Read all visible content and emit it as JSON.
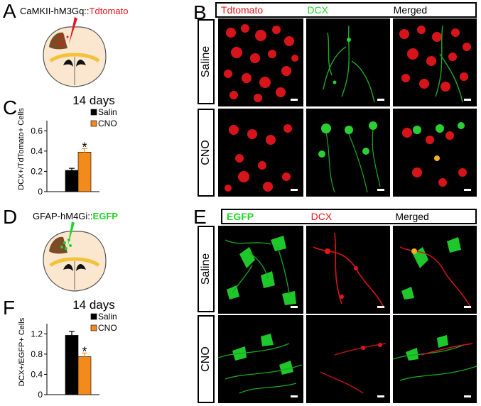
{
  "panels": {
    "a": "A",
    "b": "B",
    "c": "C",
    "d": "D",
    "e": "E",
    "f": "F"
  },
  "constructs": {
    "top_prefix": "CaMKII-hM3Gq::",
    "top_reporter": "Tdtomato",
    "bottom_prefix": "GFAP-hM4Gi::",
    "bottom_reporter": "EGFP"
  },
  "b_headers": [
    "Tdtomato",
    "DCX",
    "Merged"
  ],
  "e_headers": [
    "EGFP",
    "DCX",
    "Merged"
  ],
  "row_labels": [
    "Saline",
    "CNO"
  ],
  "colors": {
    "saline": "#000000",
    "cno": "#f28a1c",
    "red": "#e8141b",
    "green": "#22d42a"
  },
  "chart_data": [
    {
      "type": "bar",
      "title": "14 days",
      "ylabel": "DCX+/TdTomato+ Cells",
      "categories": [
        "Saline",
        "CNO"
      ],
      "values": [
        0.21,
        0.39
      ],
      "errors": [
        0.02,
        0.035
      ],
      "ylim": [
        0,
        0.7
      ],
      "yticks": [
        "0",
        "0.2",
        "0.4",
        "0.6"
      ],
      "legend": [
        "Saline",
        "CNO"
      ],
      "annotation": "*"
    },
    {
      "type": "bar",
      "title": "14 days",
      "ylabel": "DCX+/EGFP+ Cells",
      "categories": [
        "Saline",
        "CNO"
      ],
      "values": [
        1.17,
        0.75
      ],
      "errors": [
        0.08,
        0.07
      ],
      "ylim": [
        0,
        1.4
      ],
      "yticks": [
        "0",
        "0.4",
        "0.8",
        "1.2"
      ],
      "legend": [
        "Saline",
        "CNO"
      ],
      "annotation": "*"
    }
  ]
}
